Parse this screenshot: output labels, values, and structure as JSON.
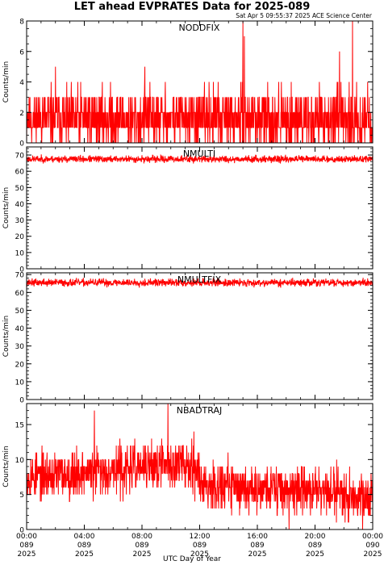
{
  "header": {
    "title": "LET ahead EVPRATES Data for 2025-089",
    "timestamp": "Sat Apr  5 09:55:37 2025 ACE Science Center"
  },
  "x_axis": {
    "title": "UTC Day of Year",
    "range_hours": [
      0,
      24
    ],
    "ticks": [
      {
        "time": "00:00",
        "doy": "089",
        "year": "2025"
      },
      {
        "time": "04:00",
        "doy": "089",
        "year": "2025"
      },
      {
        "time": "08:00",
        "doy": "089",
        "year": "2025"
      },
      {
        "time": "12:00",
        "doy": "089",
        "year": "2025"
      },
      {
        "time": "16:00",
        "doy": "089",
        "year": "2025"
      },
      {
        "time": "20:00",
        "doy": "089",
        "year": "2025"
      },
      {
        "time": "00:00",
        "doy": "090",
        "year": "2025"
      }
    ]
  },
  "colors": {
    "line": "#ff0000",
    "label": "#0000ff",
    "axis": "#000000",
    "background": "#ffffff"
  },
  "chart_data": [
    {
      "type": "line",
      "series": [
        {
          "name": "NODDFIX"
        }
      ],
      "ylabel": "Counts/min",
      "ylim": [
        0,
        8
      ],
      "yticks": [
        0,
        2,
        4,
        6,
        8
      ],
      "x_unit": "hours UTC, day 089",
      "pattern": {
        "baseline": 1.6,
        "spread": 1.4,
        "min": 0,
        "max": 8,
        "seed": 11,
        "integer": true
      },
      "spikes": [
        {
          "x": 15.0,
          "y": 8
        },
        {
          "x": 15.1,
          "y": 7
        },
        {
          "x": 22.6,
          "y": 8
        },
        {
          "x": 21.7,
          "y": 6
        },
        {
          "x": 2.0,
          "y": 5
        },
        {
          "x": 8.2,
          "y": 5
        }
      ]
    },
    {
      "type": "line",
      "series": [
        {
          "name": "NMULTI"
        }
      ],
      "ylabel": "Counts/min",
      "ylim": [
        0,
        75
      ],
      "yticks": [
        0,
        10,
        20,
        30,
        40,
        50,
        60,
        70
      ],
      "x_unit": "hours UTC, day 089",
      "pattern": {
        "baseline": 67.5,
        "spread": 1.6,
        "min": 60,
        "max": 72,
        "seed": 23,
        "integer": false
      },
      "spikes": []
    },
    {
      "type": "line",
      "series": [
        {
          "name": "NMULTFIX"
        }
      ],
      "ylabel": "Counts/min",
      "ylim": [
        0,
        71
      ],
      "yticks": [
        0,
        10,
        20,
        30,
        40,
        50,
        60,
        70
      ],
      "x_unit": "hours UTC, day 089",
      "pattern": {
        "baseline": 65.5,
        "spread": 1.6,
        "min": 58,
        "max": 70,
        "seed": 37,
        "integer": false
      },
      "spikes": []
    },
    {
      "type": "line",
      "series": [
        {
          "name": "NBADTRAJ"
        }
      ],
      "ylabel": "Counts/min",
      "ylim": [
        0,
        18
      ],
      "yticks": [
        0,
        5,
        10,
        15
      ],
      "x_unit": "hours UTC, day 089",
      "pattern": {
        "baseline": 7.2,
        "spread": 2.6,
        "min": 0,
        "max": 18,
        "seed": 53,
        "integer": true,
        "trend": [
          [
            0,
            7.5
          ],
          [
            6,
            8.5
          ],
          [
            11.5,
            9.5
          ],
          [
            12.2,
            6.5
          ],
          [
            24,
            5.0
          ]
        ]
      },
      "spikes": [
        {
          "x": 9.8,
          "y": 18
        },
        {
          "x": 11.6,
          "y": 14
        },
        {
          "x": 4.7,
          "y": 17
        },
        {
          "x": 18.2,
          "y": 0
        },
        {
          "x": 23.3,
          "y": 0
        }
      ]
    }
  ]
}
